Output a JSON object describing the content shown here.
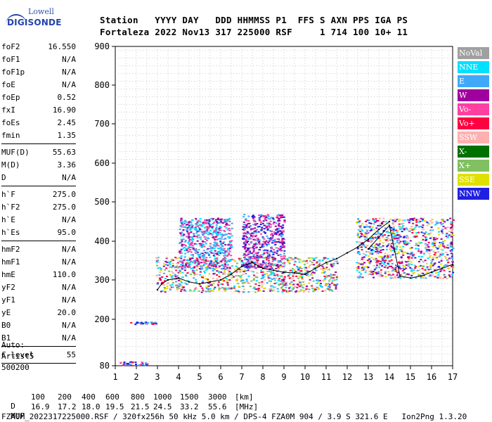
{
  "logo": {
    "line1": "Lowell",
    "line2": "DIGISONDE"
  },
  "header": {
    "row1": "Station   YYYY DAY   DDD HHMMSS P1  FFS S AXN PPS IGA PS",
    "row2": "Fortaleza 2022 Nov13 317 225000 RSF     1 714 100 10+ 11"
  },
  "params": [
    {
      "group": [
        {
          "k": "foF2",
          "v": "16.550"
        },
        {
          "k": "foF1",
          "v": "N/A"
        },
        {
          "k": "foF1p",
          "v": "N/A"
        },
        {
          "k": "foE",
          "v": "N/A"
        },
        {
          "k": "foEp",
          "v": "0.52"
        },
        {
          "k": "fxI",
          "v": "16.90"
        },
        {
          "k": "foEs",
          "v": "2.45"
        },
        {
          "k": "fmin",
          "v": "1.35"
        }
      ]
    },
    {
      "group": [
        {
          "k": "MUF(D)",
          "v": "55.63"
        },
        {
          "k": "M(D)",
          "v": "3.36"
        },
        {
          "k": "D",
          "v": "N/A"
        }
      ]
    },
    {
      "group": [
        {
          "k": "h`F",
          "v": "275.0"
        },
        {
          "k": "h`F2",
          "v": "275.0"
        },
        {
          "k": "h`E",
          "v": "N/A"
        },
        {
          "k": "h`Es",
          "v": "95.0"
        }
      ]
    },
    {
      "group": [
        {
          "k": "hmF2",
          "v": "N/A"
        },
        {
          "k": "hmF1",
          "v": "N/A"
        },
        {
          "k": "hmE",
          "v": "110.0"
        },
        {
          "k": "yF2",
          "v": "N/A"
        },
        {
          "k": "yF1",
          "v": "N/A"
        },
        {
          "k": "yE",
          "v": "20.0"
        },
        {
          "k": "B0",
          "v": "N/A"
        },
        {
          "k": "B1",
          "v": "N/A"
        }
      ]
    },
    {
      "group": [
        {
          "k": "C-level",
          "v": "55"
        }
      ]
    }
  ],
  "auto": {
    "l1": "Auto:",
    "l2": "Artist5",
    "l3": "500200"
  },
  "legend": [
    {
      "label": "NoVal",
      "color": "#a0a0a0",
      "text": "#ffffff"
    },
    {
      "label": "NNE",
      "color": "#00e0ff",
      "text": "#ffffff"
    },
    {
      "label": "E",
      "color": "#40a8f8",
      "text": "#ffffff"
    },
    {
      "label": "W",
      "color": "#a000a0",
      "text": "#ffffff"
    },
    {
      "label": "Vo-",
      "color": "#ff40a0",
      "text": "#ffffff"
    },
    {
      "label": "Vo+",
      "color": "#ff0040",
      "text": "#ffffff"
    },
    {
      "label": "SSW",
      "color": "#ffb0b0",
      "text": "#ffffff"
    },
    {
      "label": "X-",
      "color": "#007000",
      "text": "#ffffff"
    },
    {
      "label": "X+",
      "color": "#80c060",
      "text": "#ffffff"
    },
    {
      "label": "SSE",
      "color": "#e0e000",
      "text": "#ffffff"
    },
    {
      "label": "NNW",
      "color": "#2020e0",
      "text": "#ffffff"
    }
  ],
  "footer": {
    "dist_label": "D",
    "dist_values": [
      "100",
      "200",
      "400",
      "600",
      "800",
      "1000",
      "1500",
      "3000"
    ],
    "dist_unit": "[km]",
    "muf_label": "MUF",
    "muf_values": [
      "16.9",
      "17.2",
      "18.0",
      "19.5",
      "21.5",
      "24.5",
      "33.2",
      "55.6"
    ],
    "muf_unit": "[MHz]",
    "info": "FZA0M_2022317225000.RSF / 320fx256h 50 kHz 5.0 km / DPS-4 FZA0M 904 / 3.9 S 321.6 E   Ion2Png 1.3.20"
  },
  "chart_data": {
    "type": "scatter",
    "title": "",
    "xlabel": "",
    "ylabel": "",
    "x_ticks": [
      1,
      2,
      3,
      4,
      5,
      6,
      7,
      8,
      9,
      10,
      11,
      12,
      13,
      14,
      15,
      16,
      17
    ],
    "y_ticks": [
      80,
      200,
      300,
      400,
      500,
      600,
      700,
      800,
      900
    ],
    "xlim": [
      1,
      17
    ],
    "ylim": [
      80,
      900
    ],
    "y_scale": "nonlinear (as printed axis)",
    "grid": true,
    "traces": [
      {
        "name": "",
        "color": "#000000",
        "x": [
          3.0,
          3.2,
          3.5,
          4.0,
          4.5,
          5.0,
          5.5,
          6.0,
          6.5,
          7.0,
          7.5,
          8.0,
          8.5,
          9.0,
          9.5,
          10.0,
          10.5,
          11.0,
          11.5,
          12.0,
          12.5,
          13.0,
          13.5,
          14.0
        ],
        "y": [
          275,
          290,
          300,
          305,
          295,
          290,
          295,
          300,
          315,
          335,
          345,
          330,
          325,
          320,
          318,
          315,
          330,
          345,
          355,
          370,
          385,
          405,
          430,
          450
        ]
      },
      {
        "name": "",
        "color": "#000000",
        "x": [
          13.0,
          13.5,
          14.0,
          14.5,
          15.0,
          15.5,
          16.0,
          16.5,
          17.0
        ],
        "y": [
          380,
          410,
          440,
          310,
          305,
          310,
          320,
          330,
          340
        ]
      }
    ],
    "echo_clusters": [
      {
        "x_range": [
          1.7,
          2.9
        ],
        "y_range": [
          188,
          195
        ],
        "colors": [
          "#ff0040",
          "#40a8f8",
          "#2020e0"
        ]
      },
      {
        "x_range": [
          1.2,
          2.7
        ],
        "y_range": [
          82,
          92
        ],
        "colors": [
          "#ff0040",
          "#40a8f8",
          "#ff40a0",
          "#2020e0"
        ]
      },
      {
        "x_range": [
          2.9,
          11.5
        ],
        "y_range": [
          270,
          360
        ],
        "colors": [
          "#e0e000",
          "#ffb0b0",
          "#40a8f8",
          "#00e0ff",
          "#80c060",
          "#a000a0",
          "#ff0040"
        ]
      },
      {
        "x_range": [
          4.0,
          6.5
        ],
        "y_range": [
          330,
          460
        ],
        "colors": [
          "#40a8f8",
          "#a000a0",
          "#ff40a0",
          "#00e0ff"
        ]
      },
      {
        "x_range": [
          7.0,
          9.0
        ],
        "y_range": [
          330,
          470
        ],
        "colors": [
          "#a000a0",
          "#2020e0",
          "#40a8f8",
          "#ff40a0"
        ]
      },
      {
        "x_range": [
          12.4,
          17.0
        ],
        "y_range": [
          305,
          460
        ],
        "colors": [
          "#2020e0",
          "#40a8f8",
          "#a000a0",
          "#00e0ff",
          "#ffb0b0",
          "#e0e000",
          "#ff0040"
        ]
      }
    ]
  }
}
